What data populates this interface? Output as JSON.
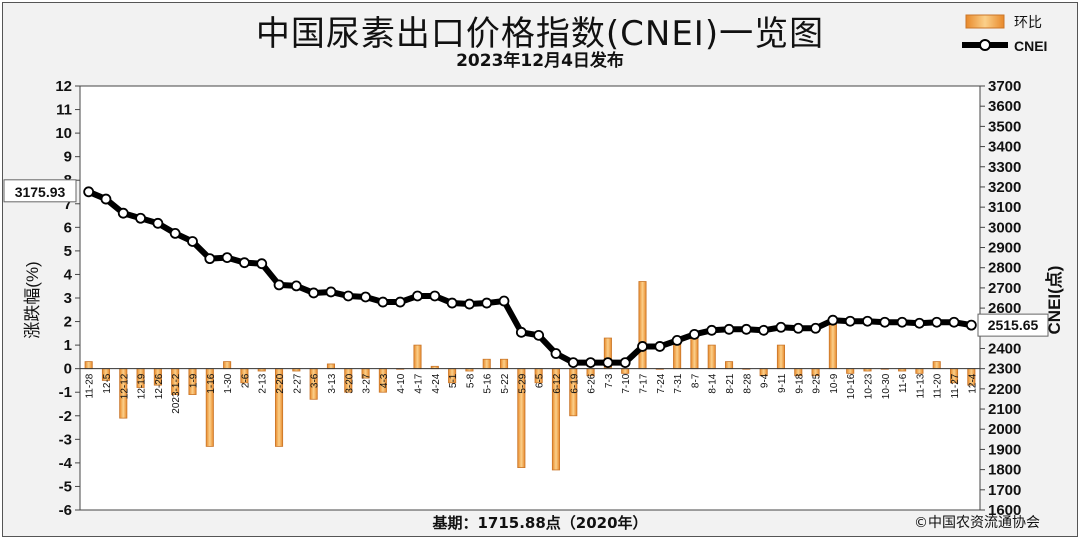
{
  "title": "中国尿素出口价格指数(CNEI)一览图",
  "subtitle": "2023年12月4日发布",
  "legend": {
    "bar_label": "环比",
    "line_label": "CNEI"
  },
  "footer": {
    "base": "基期：1715.88点（2020年）",
    "copyright": "©中国农资流通协会"
  },
  "first_point_label": "3175.93",
  "last_point_label": "2515.65",
  "colors": {
    "bar_fill": "#f7b14a",
    "bar_edge": "#c9762a",
    "line": "#000000",
    "marker_fill": "#ffffff",
    "plot_bg": "#ffffff",
    "frame_bg": "#f2f2f2"
  },
  "chart_data": {
    "type": "bar+line",
    "categories": [
      "11-28",
      "12-5",
      "12-12",
      "12-19",
      "12-26",
      "2023-1-2",
      "1-9",
      "1-16",
      "1-30",
      "2-6",
      "2-13",
      "2-20",
      "2-27",
      "3-6",
      "3-13",
      "3-20",
      "3-27",
      "4-3",
      "4-10",
      "4-17",
      "4-24",
      "5-1",
      "5-8",
      "5-16",
      "5-22",
      "5-29",
      "6-5",
      "6-12",
      "6-19",
      "6-26",
      "7-3",
      "7-10",
      "7-17",
      "7-24",
      "7-31",
      "8-7",
      "8-14",
      "8-21",
      "8-28",
      "9-4",
      "9-11",
      "9-18",
      "9-25",
      "10-9",
      "10-16",
      "10-23",
      "10-30",
      "11-6",
      "11-13",
      "11-20",
      "11-27",
      "12-4"
    ],
    "series": [
      {
        "name": "环比",
        "axis": "left",
        "values": [
          0.3,
          -0.5,
          -2.1,
          -0.8,
          -0.7,
          -1.1,
          -1.1,
          -3.3,
          0.3,
          -0.6,
          -0.1,
          -3.3,
          -0.1,
          -1.3,
          0.2,
          -1.0,
          -0.4,
          -1.0,
          0.0,
          1.0,
          0.1,
          -0.6,
          -0.1,
          0.4,
          0.4,
          -4.2,
          -0.6,
          -4.3,
          -2.0,
          -0.3,
          1.3,
          -0.2,
          3.7,
          0.0,
          1.1,
          1.3,
          1.0,
          0.3,
          0.0,
          -0.3,
          1.0,
          -0.3,
          -0.3,
          2.0,
          -0.2,
          -0.1,
          0.0,
          -0.1,
          -0.2,
          0.3,
          -0.6,
          -0.7
        ]
      },
      {
        "name": "CNEI",
        "axis": "right",
        "values": [
          3175.93,
          3140,
          3070,
          3045,
          3020,
          2970,
          2930,
          2845,
          2850,
          2825,
          2820,
          2715,
          2710,
          2675,
          2680,
          2660,
          2655,
          2630,
          2630,
          2660,
          2660,
          2625,
          2620,
          2625,
          2635,
          2480,
          2465,
          2375,
          2330,
          2330,
          2330,
          2330,
          2410,
          2410,
          2440,
          2470,
          2490,
          2495,
          2495,
          2490,
          2505,
          2500,
          2500,
          2540,
          2535,
          2535,
          2530,
          2530,
          2525,
          2530,
          2530,
          2515.65
        ]
      }
    ],
    "ylabel_left": "涨跌幅(%)",
    "ylabel_right": "CNEI(点)",
    "ylim_left": [
      -6,
      12
    ],
    "ylim_right": [
      1600,
      3700
    ],
    "yticks_left": [
      "12",
      "11",
      "10",
      "9",
      "8",
      "7",
      "6",
      "5",
      "4",
      "3",
      "2",
      "1",
      "0",
      "-1",
      "-2",
      "-3",
      "-4",
      "-5",
      "-6"
    ],
    "yticks_right": [
      "3700",
      "3600",
      "3500",
      "3400",
      "3300",
      "3200",
      "3100",
      "3000",
      "2900",
      "2800",
      "2700",
      "2600",
      "2500",
      "2400",
      "2300",
      "2200",
      "2100",
      "2000",
      "1900",
      "1800",
      "1700",
      "1600"
    ],
    "grid": false,
    "legend_position": "top-right"
  }
}
